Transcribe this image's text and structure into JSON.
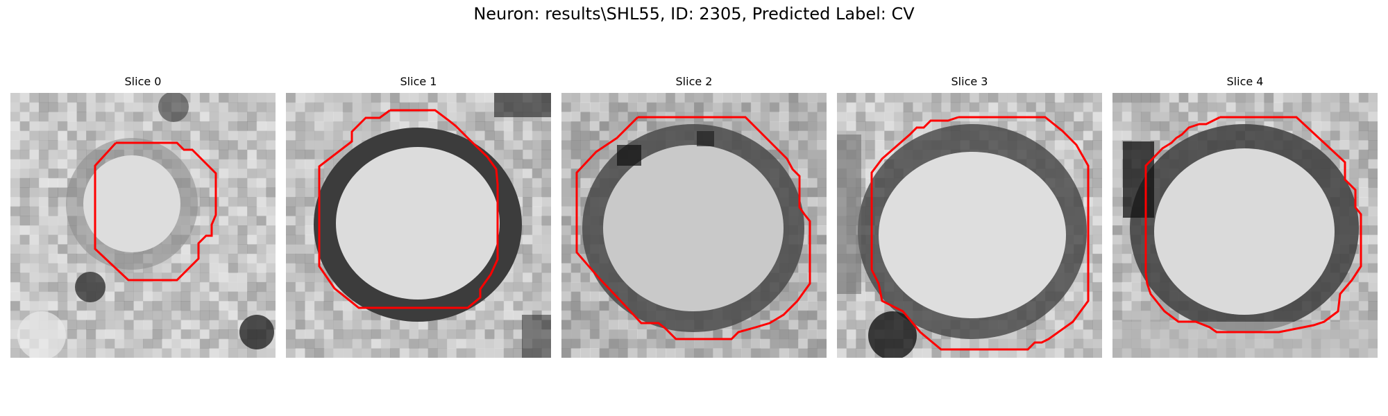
{
  "figure": {
    "title": "Neuron: results\\SHL55, ID: 2305, Predicted Label: CV"
  },
  "colors": {
    "contour": "#ff0000",
    "background": "#ffffff"
  },
  "slices": [
    {
      "title": "Slice 0"
    },
    {
      "title": "Slice 1"
    },
    {
      "title": "Slice 2"
    },
    {
      "title": "Slice 3"
    },
    {
      "title": "Slice 4"
    }
  ]
}
